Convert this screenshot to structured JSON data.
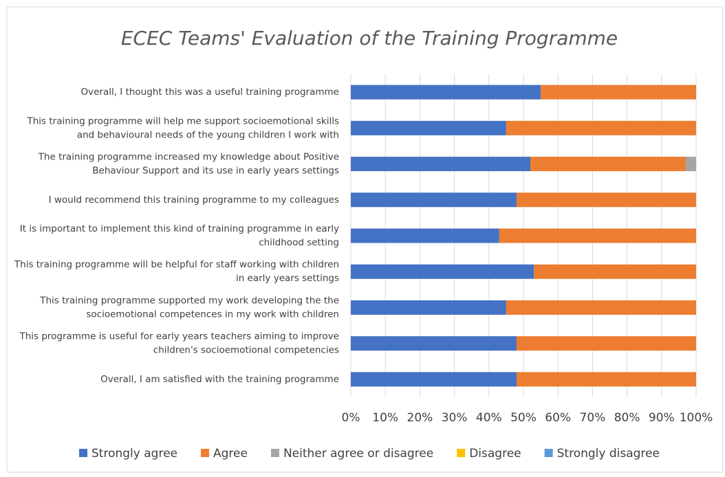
{
  "chart_data": {
    "type": "stacked_bar_horizontal",
    "title": "ECEC Teams' Evaluation of the Training Programme",
    "categories": [
      "Overall, I thought this was a useful training programme",
      "This training programme will help me support socioemotional skills and behavioural needs of the young children I work with",
      "The training programme increased my knowledge about Positive Behaviour Support and its use in early years settings",
      "I would recommend this training programme to my colleagues",
      "It is important to implement this kind of training programme in early childhood setting",
      "This training programme will be helpful for staff working with children in early years settings",
      "This training programme supported my work developing the the socioemotional competences in my work with children",
      "This programme is useful for early years teachers aiming to improve children's socioemotional competencies",
      "Overall, I am satisfied with the training programme"
    ],
    "series": [
      {
        "name": "Strongly agree",
        "color": "#4472c4",
        "values": [
          55,
          45,
          52,
          48,
          43,
          53,
          45,
          48,
          48
        ]
      },
      {
        "name": "Agree",
        "color": "#ed7d31",
        "values": [
          45,
          55,
          45,
          52,
          57,
          47,
          55,
          52,
          52
        ]
      },
      {
        "name": "Neither agree or disagree",
        "color": "#a5a5a5",
        "values": [
          0,
          0,
          3,
          0,
          0,
          0,
          0,
          0,
          0
        ]
      },
      {
        "name": "Disagree",
        "color": "#ffc000",
        "values": [
          0,
          0,
          0,
          0,
          0,
          0,
          0,
          0,
          0
        ]
      },
      {
        "name": "Strongly disagree",
        "color": "#5b9bd5",
        "values": [
          0,
          0,
          0,
          0,
          0,
          0,
          0,
          0,
          0
        ]
      }
    ],
    "xlim": [
      0,
      100
    ],
    "xticks": [
      {
        "value": 0,
        "label": "0%"
      },
      {
        "value": 10,
        "label": "10%"
      },
      {
        "value": 20,
        "label": "20%"
      },
      {
        "value": 30,
        "label": "30%"
      },
      {
        "value": 40,
        "label": "40%"
      },
      {
        "value": 50,
        "label": "50%"
      },
      {
        "value": 60,
        "label": "60%"
      },
      {
        "value": 70,
        "label": "70%"
      },
      {
        "value": 80,
        "label": "80%"
      },
      {
        "value": 90,
        "label": "90%"
      },
      {
        "value": 100,
        "label": "100%"
      }
    ],
    "grid": true,
    "legend": "bottom"
  }
}
